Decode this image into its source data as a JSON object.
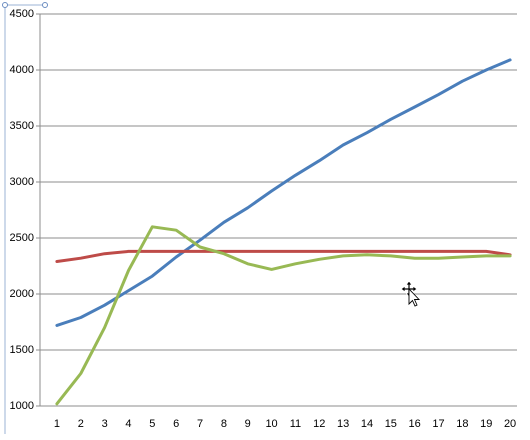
{
  "chart_data": {
    "type": "line",
    "categories": [
      "1",
      "2",
      "3",
      "4",
      "5",
      "6",
      "7",
      "8",
      "9",
      "10",
      "11",
      "12",
      "13",
      "14",
      "15",
      "16",
      "17",
      "18",
      "19",
      "20"
    ],
    "series": [
      {
        "color": "#4a7ebb",
        "values": [
          1720,
          1790,
          1900,
          2030,
          2160,
          2330,
          2480,
          2640,
          2770,
          2920,
          3060,
          3190,
          3330,
          3440,
          3560,
          3670,
          3780,
          3900,
          4000,
          4090
        ]
      },
      {
        "color": "#be4b48",
        "values": [
          2290,
          2320,
          2360,
          2380,
          2380,
          2380,
          2380,
          2380,
          2380,
          2380,
          2380,
          2380,
          2380,
          2380,
          2380,
          2380,
          2380,
          2380,
          2380,
          2350
        ]
      },
      {
        "color": "#98b954",
        "values": [
          1020,
          1290,
          1700,
          2210,
          2600,
          2570,
          2420,
          2360,
          2270,
          2220,
          2270,
          2310,
          2340,
          2350,
          2340,
          2320,
          2320,
          2330,
          2340,
          2340
        ]
      }
    ],
    "ylim": [
      1000,
      4500
    ],
    "yticks": [
      1000,
      1500,
      2000,
      2500,
      3000,
      3500,
      4000,
      4500
    ],
    "grid": true
  }
}
